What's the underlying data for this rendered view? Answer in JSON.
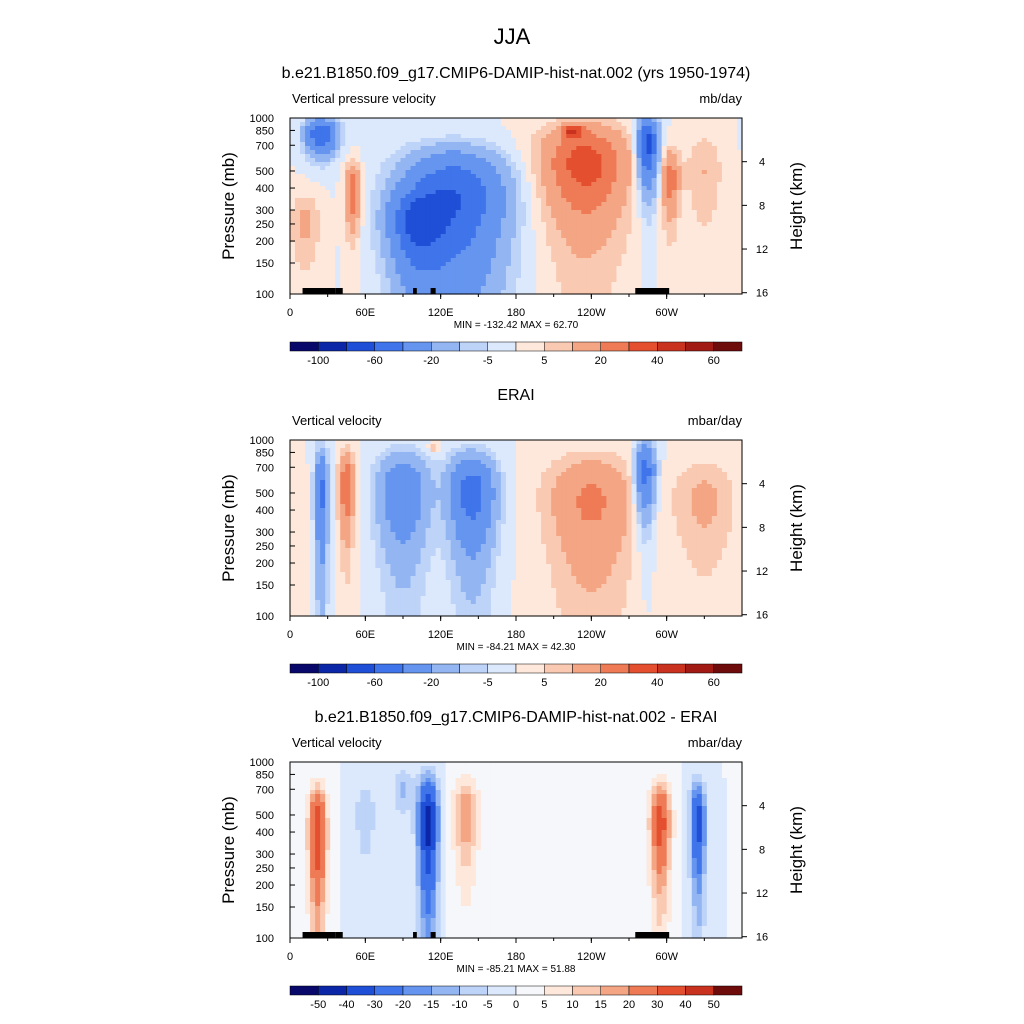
{
  "page_title": "JJA",
  "chart_data": [
    {
      "type": "heatmap",
      "title": "b.e21.B1850.f09_g17.CMIP6-DAMIP-hist-nat.002 (yrs 1950-1974)",
      "left_label": "Vertical pressure velocity",
      "units": "mb/day",
      "ylabel": "Pressure (mb)",
      "ylabel_right": "Height (km)",
      "stats": "MIN = -132.42  MAX =  62.70",
      "xticks": [
        "0",
        "60E",
        "120E",
        "180",
        "120W",
        "60W"
      ],
      "yticks": [
        "100",
        "150",
        "200",
        "250",
        "300",
        "400",
        "500",
        "700",
        "850",
        "1000"
      ],
      "height_ticks": [
        "4",
        "8",
        "12",
        "16"
      ],
      "colorbar": {
        "labels": [
          "-100",
          "-60",
          "-20",
          "-5",
          "5",
          "20",
          "40",
          "60"
        ],
        "levels": [
          -120,
          -100,
          -80,
          -60,
          -40,
          -20,
          -10,
          -5,
          0,
          5,
          10,
          20,
          30,
          40,
          50,
          60
        ],
        "colors": [
          "#08086b",
          "#0b27a8",
          "#1f4fd6",
          "#3f74ea",
          "#6595ef",
          "#93b6f3",
          "#bdd3f8",
          "#dce9fc",
          "#fde8db",
          "#f9c9b2",
          "#f4a584",
          "#ee7b56",
          "#e4502f",
          "#c9321f",
          "#a11a13",
          "#6e0b0b"
        ]
      },
      "field_features": [
        {
          "lon": 25,
          "lev": 800,
          "slon": 12,
          "slev": 180,
          "v": -60
        },
        {
          "lon": 50,
          "lev": 380,
          "slon": 6,
          "slev": 160,
          "v": 30
        },
        {
          "lon": 130,
          "lev": 350,
          "slon": 40,
          "slev": 280,
          "v": -60
        },
        {
          "lon": 100,
          "lev": 250,
          "slon": 20,
          "slev": 120,
          "v": -45
        },
        {
          "lon": 235,
          "lev": 550,
          "slon": 35,
          "slev": 350,
          "v": 35
        },
        {
          "lon": 225,
          "lev": 850,
          "slon": 8,
          "slev": 70,
          "v": 30
        },
        {
          "lon": 285,
          "lev": 700,
          "slon": 8,
          "slev": 300,
          "v": -70
        },
        {
          "lon": 303,
          "lev": 450,
          "slon": 7,
          "slev": 200,
          "v": 25
        },
        {
          "lon": 12,
          "lev": 250,
          "slon": 12,
          "slev": 120,
          "v": 12
        },
        {
          "lon": 330,
          "lev": 500,
          "slon": 15,
          "slev": 300,
          "v": 10
        }
      ],
      "topography": [
        [
          10,
          30
        ],
        [
          28,
          36
        ],
        [
          36,
          42
        ],
        [
          98,
          101
        ],
        [
          112,
          116
        ],
        [
          275,
          302
        ]
      ]
    },
    {
      "type": "heatmap",
      "title": "ERAI",
      "left_label": "Vertical velocity",
      "units": "mbar/day",
      "ylabel": "Pressure (mb)",
      "ylabel_right": "Height (km)",
      "stats": "MIN = -84.21  MAX =  42.30",
      "xticks": [
        "0",
        "60E",
        "120E",
        "180",
        "120W",
        "60W"
      ],
      "yticks": [
        "100",
        "150",
        "200",
        "250",
        "300",
        "400",
        "500",
        "700",
        "850",
        "1000"
      ],
      "height_ticks": [
        "4",
        "8",
        "12",
        "16"
      ],
      "colorbar": {
        "labels": [
          "-100",
          "-60",
          "-20",
          "-5",
          "5",
          "20",
          "40",
          "60"
        ],
        "levels": [
          -120,
          -100,
          -80,
          -60,
          -40,
          -20,
          -10,
          -5,
          0,
          5,
          10,
          20,
          30,
          40,
          50,
          60
        ],
        "colors": [
          "#08086b",
          "#0b27a8",
          "#1f4fd6",
          "#3f74ea",
          "#6595ef",
          "#93b6f3",
          "#bdd3f8",
          "#dce9fc",
          "#fde8db",
          "#f9c9b2",
          "#f4a584",
          "#ee7b56",
          "#e4502f",
          "#c9321f",
          "#a11a13",
          "#6e0b0b"
        ]
      },
      "field_features": [
        {
          "lon": 25,
          "lev": 500,
          "slon": 5,
          "slev": 350,
          "v": -45
        },
        {
          "lon": 45,
          "lev": 550,
          "slon": 6,
          "slev": 300,
          "v": 30
        },
        {
          "lon": 90,
          "lev": 500,
          "slon": 20,
          "slev": 320,
          "v": -35
        },
        {
          "lon": 145,
          "lev": 500,
          "slon": 18,
          "slev": 300,
          "v": -50
        },
        {
          "lon": 240,
          "lev": 450,
          "slon": 35,
          "slev": 350,
          "v": 22
        },
        {
          "lon": 283,
          "lev": 650,
          "slon": 8,
          "slev": 300,
          "v": -50
        },
        {
          "lon": 330,
          "lev": 450,
          "slon": 25,
          "slev": 300,
          "v": 12
        },
        {
          "lon": 115,
          "lev": 900,
          "slon": 5,
          "slev": 60,
          "v": 10
        }
      ],
      "topography": []
    },
    {
      "type": "heatmap",
      "title": "b.e21.B1850.f09_g17.CMIP6-DAMIP-hist-nat.002 - ERAI",
      "left_label": "Vertical velocity",
      "units": "mbar/day",
      "ylabel": "Pressure (mb)",
      "ylabel_right": "Height (km)",
      "stats": "MIN = -85.21  MAX =  51.88",
      "xticks": [
        "0",
        "60E",
        "120E",
        "180",
        "120W",
        "60W"
      ],
      "yticks": [
        "100",
        "150",
        "200",
        "250",
        "300",
        "400",
        "500",
        "700",
        "850",
        "1000"
      ],
      "height_ticks": [
        "4",
        "8",
        "12",
        "16"
      ],
      "colorbar": {
        "labels": [
          "-50",
          "-40",
          "-30",
          "-20",
          "-15",
          "-10",
          "-5",
          "0",
          "5",
          "10",
          "15",
          "20",
          "30",
          "40",
          "50"
        ],
        "levels": [
          -60,
          -50,
          -40,
          -30,
          -20,
          -15,
          -10,
          -5,
          0,
          5,
          10,
          15,
          20,
          30,
          40,
          50,
          60
        ],
        "colors": [
          "#08086b",
          "#0b27a8",
          "#1f4fd6",
          "#3f74ea",
          "#6595ef",
          "#93b6f3",
          "#bdd3f8",
          "#dce9fc",
          "#f5f7fb",
          "#fde8db",
          "#f9c9b2",
          "#f4a584",
          "#ee7b56",
          "#e4502f",
          "#c9321f",
          "#6e0b0b"
        ]
      },
      "field_features": [
        {
          "lon": 22,
          "lev": 400,
          "slon": 7,
          "slev": 300,
          "v": 40
        },
        {
          "lon": 110,
          "lev": 450,
          "slon": 8,
          "slev": 350,
          "v": -45
        },
        {
          "lon": 140,
          "lev": 500,
          "slon": 10,
          "slev": 300,
          "v": 20
        },
        {
          "lon": 90,
          "lev": 700,
          "slon": 8,
          "slev": 200,
          "v": -12
        },
        {
          "lon": 295,
          "lev": 450,
          "slon": 8,
          "slev": 300,
          "v": 35
        },
        {
          "lon": 325,
          "lev": 450,
          "slon": 6,
          "slev": 300,
          "v": -35
        },
        {
          "lon": 230,
          "lev": 600,
          "slon": 35,
          "slev": 300,
          "v": 4
        },
        {
          "lon": 60,
          "lev": 500,
          "slon": 10,
          "slev": 300,
          "v": -8
        }
      ],
      "topography": [
        [
          10,
          30
        ],
        [
          28,
          36
        ],
        [
          36,
          42
        ],
        [
          98,
          101
        ],
        [
          112,
          116
        ],
        [
          275,
          302
        ]
      ]
    }
  ]
}
